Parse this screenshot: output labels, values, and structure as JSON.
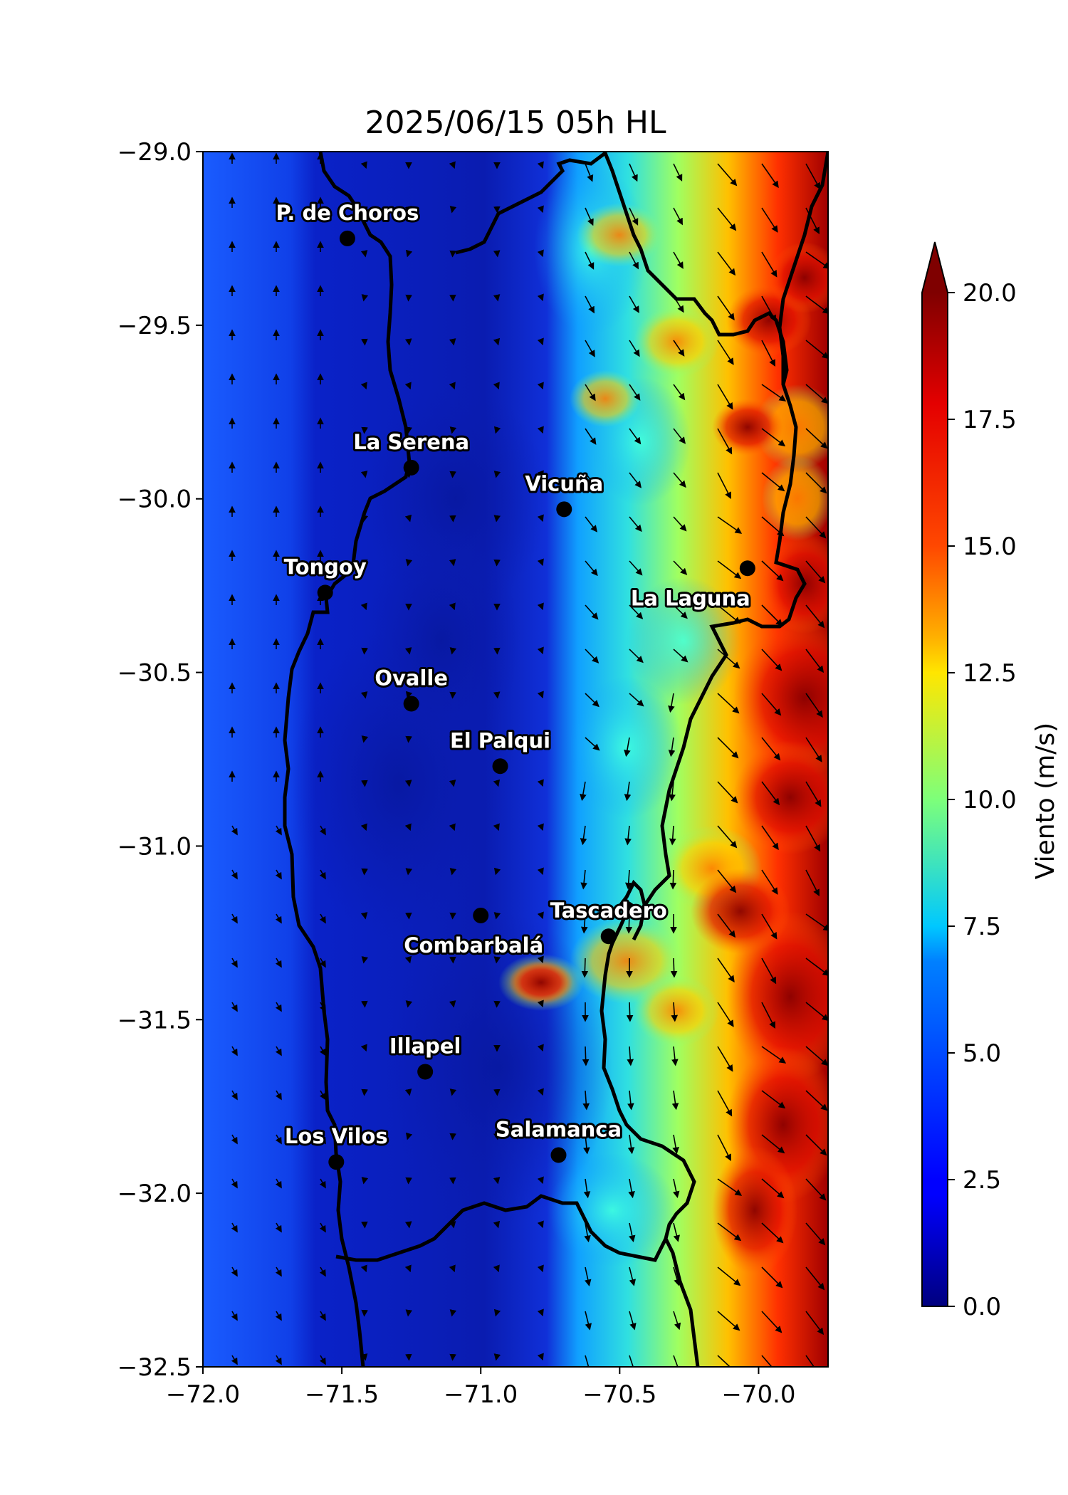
{
  "map": {
    "title": "2025/06/15 05h HL",
    "lon_range": [
      -72.0,
      -69.75
    ],
    "lat_range": [
      -32.5,
      -29.0
    ],
    "x_ticks": [
      "−72.0",
      "−71.5",
      "−71.0",
      "−70.5",
      "−70.0"
    ],
    "x_tick_values": [
      -72.0,
      -71.5,
      -71.0,
      -70.5,
      -70.0
    ],
    "y_ticks": [
      "−29.0",
      "−29.5",
      "−30.0",
      "−30.5",
      "−31.0",
      "−31.5",
      "−32.0",
      "−32.5"
    ],
    "y_tick_values": [
      -29.0,
      -29.5,
      -30.0,
      -30.5,
      -31.0,
      -31.5,
      -32.0,
      -32.5
    ],
    "colormap": "jet",
    "ocean_color": "#1a5cff",
    "coast_color": "#000000"
  },
  "colorbar": {
    "label": "Viento (m/s)",
    "range": [
      0,
      20
    ],
    "ticks": [
      "0.0",
      "2.5",
      "5.0",
      "7.5",
      "10.0",
      "12.5",
      "15.0",
      "17.5",
      "20.0"
    ],
    "tick_values": [
      0,
      2.5,
      5,
      7.5,
      10,
      12.5,
      15,
      17.5,
      20
    ],
    "extend": "max"
  },
  "cities": [
    {
      "name": "P. de Choros",
      "lon": -71.48,
      "lat": -29.25
    },
    {
      "name": "La Serena",
      "lon": -71.25,
      "lat": -29.91
    },
    {
      "name": "Vicuña",
      "lon": -70.7,
      "lat": -30.03
    },
    {
      "name": "Tongoy",
      "lon": -71.56,
      "lat": -30.27
    },
    {
      "name": "La Laguna",
      "lon": -70.04,
      "lat": -30.2
    },
    {
      "name": "Ovalle",
      "lon": -71.25,
      "lat": -30.59
    },
    {
      "name": "El Palqui",
      "lon": -70.93,
      "lat": -30.77
    },
    {
      "name": "Combarbalá",
      "lon": -71.0,
      "lat": -31.2
    },
    {
      "name": "Tascadero",
      "lon": -70.54,
      "lat": -31.26
    },
    {
      "name": "Illapel",
      "lon": -71.2,
      "lat": -31.65
    },
    {
      "name": "Los Vilos",
      "lon": -71.52,
      "lat": -31.91
    },
    {
      "name": "Salamanca",
      "lon": -70.72,
      "lat": -31.89
    }
  ]
}
